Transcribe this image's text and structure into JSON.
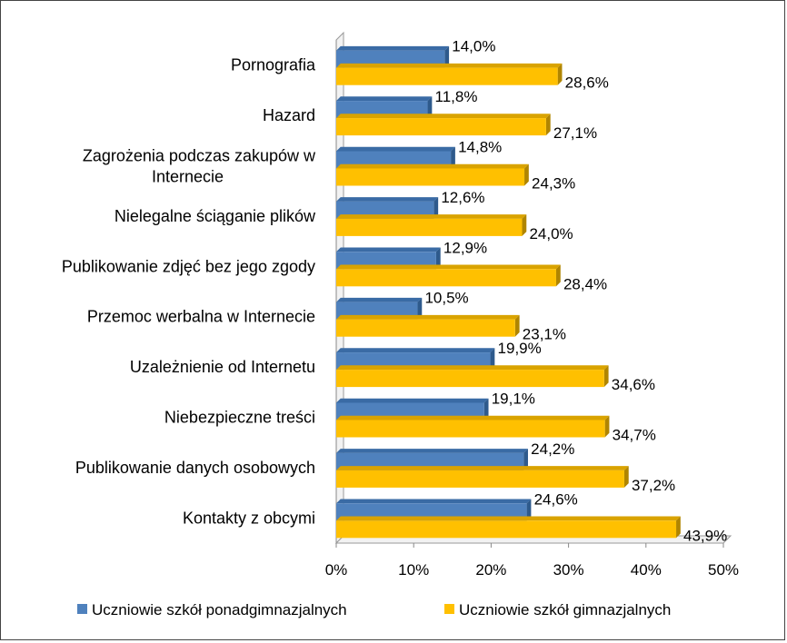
{
  "chart_data": {
    "type": "bar",
    "orientation": "horizontal",
    "categories": [
      [
        "Pornografia"
      ],
      [
        "Hazard"
      ],
      [
        "Zagrożenia podczas zakupów w",
        "Internecie"
      ],
      [
        "Nielegalne ściąganie plików"
      ],
      [
        "Publikowanie zdjęć  bez jego zgody"
      ],
      [
        "Przemoc werbalna w Internecie"
      ],
      [
        "Uzależnienie od Internetu"
      ],
      [
        "Niebezpieczne treści"
      ],
      [
        "Publikowanie danych osobowych"
      ],
      [
        "Kontakty z obcymi"
      ]
    ],
    "series": [
      {
        "name": "Uczniowie szkół ponadgimnazjalnych",
        "values": [
          14.0,
          11.8,
          14.8,
          12.6,
          12.9,
          10.5,
          19.9,
          19.1,
          24.2,
          24.6
        ],
        "labels": [
          "14,0%",
          "11,8%",
          "14,8%",
          "12,6%",
          "12,9%",
          "10,5%",
          "19,9%",
          "19,1%",
          "24,2%",
          "24,6%"
        ],
        "color": "#4F81BD",
        "side_color": "#2E5A8C",
        "top_color": "#3A6BA5"
      },
      {
        "name": "Uczniowie szkół gimnazjalnych",
        "values": [
          28.6,
          27.1,
          24.3,
          24.0,
          28.4,
          23.1,
          34.6,
          34.7,
          37.2,
          43.9
        ],
        "labels": [
          "28,6%",
          "27,1%",
          "24,3%",
          "24,0%",
          "28,4%",
          "23,1%",
          "34,6%",
          "34,7%",
          "37,2%",
          "43,9%"
        ],
        "color": "#FFC000",
        "side_color": "#B08500",
        "top_color": "#D9A300"
      }
    ],
    "xlim": [
      0,
      50
    ],
    "xticks": [
      0,
      10,
      20,
      30,
      40,
      50
    ],
    "xtick_labels": [
      "0%",
      "10%",
      "20%",
      "30%",
      "40%",
      "50%"
    ],
    "gridlines": false,
    "legend_position": "bottom"
  }
}
